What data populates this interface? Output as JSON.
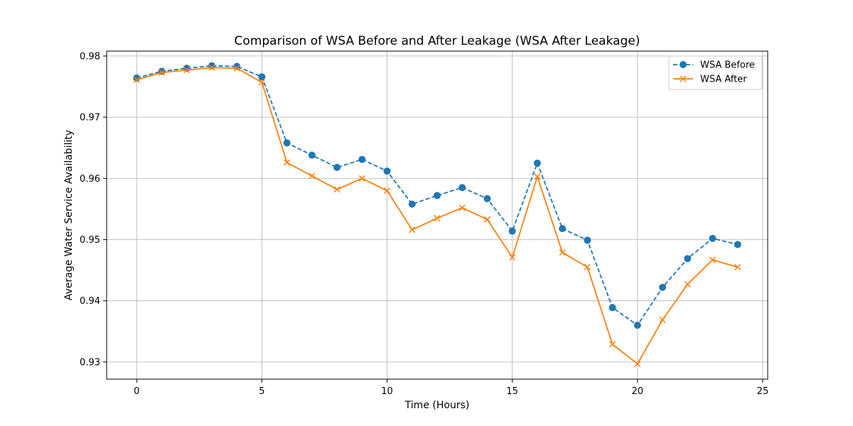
{
  "chart_data": {
    "type": "line",
    "title": "Comparison of WSA Before and After Leakage (WSA After Leakage)",
    "xlabel": "Time (Hours)",
    "ylabel": "Average Water Service Availability",
    "xlim": [
      -1.2,
      25.2
    ],
    "ylim": [
      0.9272,
      0.9808
    ],
    "xticks": [
      0,
      5,
      10,
      15,
      20,
      25
    ],
    "xtick_labels": [
      "0",
      "5",
      "10",
      "15",
      "20",
      "25"
    ],
    "yticks": [
      0.93,
      0.94,
      0.95,
      0.96,
      0.97,
      0.98
    ],
    "ytick_labels": [
      "0.93",
      "0.94",
      "0.95",
      "0.96",
      "0.97",
      "0.98"
    ],
    "grid": true,
    "legend_position": "top-right",
    "x": [
      0,
      1,
      2,
      3,
      4,
      5,
      6,
      7,
      8,
      9,
      10,
      11,
      12,
      13,
      14,
      15,
      16,
      17,
      18,
      19,
      20,
      21,
      22,
      23,
      24
    ],
    "series": [
      {
        "name": "WSA Before",
        "color": "#1f77b4",
        "line_style": "dashed",
        "marker": "circle",
        "values": [
          0.9764,
          0.9775,
          0.978,
          0.9784,
          0.9783,
          0.9766,
          0.9658,
          0.9638,
          0.9618,
          0.9631,
          0.9612,
          0.9558,
          0.9572,
          0.9585,
          0.9567,
          0.9514,
          0.9625,
          0.9518,
          0.9499,
          0.9389,
          0.936,
          0.9422,
          0.9469,
          0.9502,
          0.9492
        ]
      },
      {
        "name": "WSA After",
        "color": "#ff7f0e",
        "line_style": "solid",
        "marker": "x",
        "values": [
          0.9761,
          0.9773,
          0.9777,
          0.9781,
          0.978,
          0.9757,
          0.9626,
          0.9604,
          0.9582,
          0.96,
          0.958,
          0.9516,
          0.9535,
          0.9552,
          0.9533,
          0.9471,
          0.9603,
          0.9479,
          0.9455,
          0.9329,
          0.9297,
          0.9369,
          0.9427,
          0.9467,
          0.9455
        ]
      }
    ]
  }
}
